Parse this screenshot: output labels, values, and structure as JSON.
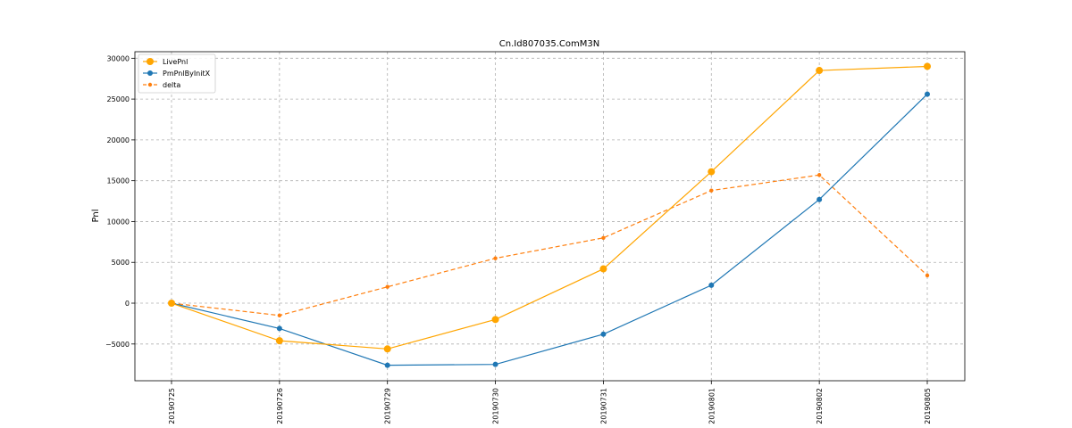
{
  "chart_data": {
    "type": "line",
    "title": "Cn.Id807035.ComM3N",
    "xlabel": "",
    "ylabel": "Pnl",
    "categories": [
      "20190725",
      "20190726",
      "20190729",
      "20190730",
      "20190731",
      "20190801",
      "20190802",
      "20190805"
    ],
    "ylim": [
      -9500,
      30800
    ],
    "yticks": [
      -5000,
      0,
      5000,
      10000,
      15000,
      20000,
      25000,
      30000
    ],
    "grid": true,
    "legend_position": "top-left",
    "series": [
      {
        "name": "LivePnl",
        "color": "#ffa500",
        "linestyle": "solid",
        "marker": "large-circle",
        "values": [
          0,
          -4600,
          -5600,
          -2000,
          4200,
          16100,
          28500,
          29000
        ]
      },
      {
        "name": "PmPnlByInitX",
        "color": "#1f77b4",
        "linestyle": "solid",
        "marker": "circle",
        "values": [
          0,
          -3100,
          -7600,
          -7500,
          -3800,
          2200,
          12700,
          25600
        ]
      },
      {
        "name": "delta",
        "color": "#ff7f0e",
        "linestyle": "dashed",
        "marker": "small-circle",
        "values": [
          0,
          -1500,
          2000,
          5500,
          8000,
          13800,
          15700,
          3400
        ]
      }
    ]
  }
}
